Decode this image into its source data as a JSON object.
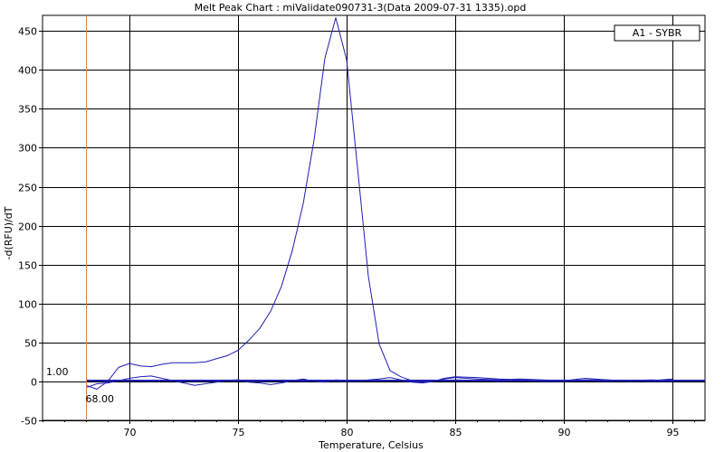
{
  "chart_data": {
    "type": "line",
    "title": "Melt Peak Chart : miValidate090731-3(Data 2009-07-31 1335).opd",
    "xlabel": "Temperature, Celsius",
    "ylabel": "-d(RFU)/dT",
    "xlim": [
      66,
      96.5
    ],
    "ylim": [
      -50,
      470
    ],
    "xticks": [
      70,
      75,
      80,
      85,
      90,
      95
    ],
    "yticks": [
      -50,
      0,
      50,
      100,
      150,
      200,
      250,
      300,
      350,
      400,
      450
    ],
    "grid": true,
    "legend_position": "top-right",
    "threshold": {
      "label": "1.00",
      "value": 1.0
    },
    "marker": {
      "label": "68.00",
      "x": 68.0,
      "color": "#d88050"
    },
    "series": [
      {
        "name": "A1 - SYBR",
        "color": "#1e1eb4",
        "x": [
          68.0,
          68.5,
          69.0,
          69.5,
          70.0,
          70.5,
          71.0,
          71.5,
          72.0,
          72.5,
          73.0,
          73.5,
          74.0,
          74.5,
          75.0,
          75.5,
          76.0,
          76.5,
          77.0,
          77.5,
          78.0,
          78.5,
          79.0,
          79.5,
          80.0,
          80.5,
          81.0,
          81.5,
          82.0,
          82.5,
          83.0,
          83.5,
          84.0,
          84.5,
          85.0,
          86.0,
          87.0,
          88.0,
          89.0,
          90.0,
          91.0,
          92.0,
          93.0,
          94.0,
          95.0
        ],
        "values": [
          -5,
          -10,
          0,
          18,
          23,
          20,
          19,
          22,
          24,
          24,
          24,
          25,
          29,
          33,
          40,
          53,
          68,
          90,
          122,
          168,
          228,
          310,
          415,
          467,
          413,
          275,
          135,
          48,
          14,
          6,
          1,
          -1,
          0,
          3,
          5,
          3,
          2,
          3,
          2,
          1,
          2,
          2,
          1,
          2,
          1
        ]
      },
      {
        "name": "",
        "color": "#1e1eb4",
        "x": [
          68.0,
          68.5,
          69.0,
          69.5,
          70.0,
          70.5,
          71.0,
          71.5,
          72.0,
          72.5,
          73.0,
          73.5,
          74.0,
          74.5,
          75.0,
          75.5,
          76.0,
          76.5,
          77.0,
          77.5,
          78.0,
          78.5,
          79.0,
          79.5,
          80.0,
          80.5,
          81.0,
          81.5,
          82.0,
          82.5,
          83.0,
          83.5,
          84.0,
          84.5,
          85.0,
          86.0,
          87.0,
          88.0,
          89.0,
          90.0,
          91.0,
          92.0,
          93.0,
          94.0,
          95.0
        ],
        "values": [
          -8,
          -3,
          -2,
          1,
          4,
          6,
          7,
          4,
          1,
          -2,
          -5,
          -3,
          -1,
          1,
          2,
          -1,
          -2,
          -4,
          -2,
          1,
          3,
          0,
          -1,
          2,
          1,
          0,
          2,
          3,
          5,
          2,
          -1,
          -2,
          0,
          4,
          6,
          5,
          3,
          2,
          0,
          1,
          4,
          2,
          0,
          1,
          3
        ]
      },
      {
        "name": "",
        "color": "#1e1eb4",
        "x": [
          68.0,
          69.0,
          70.0,
          71.0,
          72.0,
          73.0,
          74.0,
          75.0,
          76.0,
          77.0,
          78.0,
          79.0,
          80.0,
          81.0,
          82.0,
          83.0,
          84.0,
          85.0,
          86.0,
          87.0,
          88.0,
          89.0,
          90.0,
          91.0,
          92.0,
          93.0,
          94.0,
          95.0
        ],
        "values": [
          1,
          0,
          1,
          0,
          1,
          0,
          1,
          2,
          0,
          1,
          0,
          1,
          0,
          1,
          1,
          0,
          1,
          2,
          1,
          0,
          1,
          0,
          0,
          1,
          0,
          1,
          0,
          0
        ]
      }
    ]
  }
}
